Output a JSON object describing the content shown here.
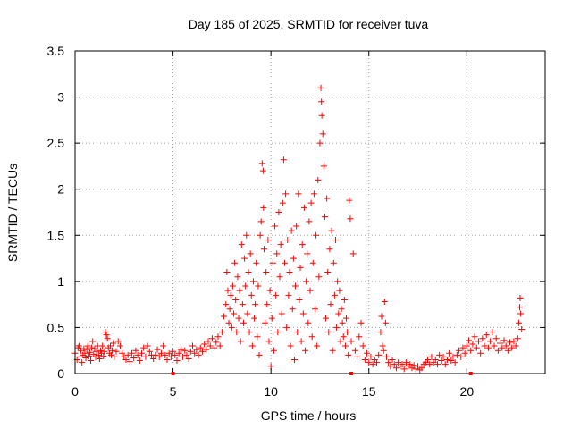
{
  "chart_data": {
    "type": "scatter",
    "title": "Day 185 of 2025, SRMTID for receiver tuva",
    "xlabel": "GPS time / hours",
    "ylabel": "SRMTID / TECUs",
    "xlim": [
      0,
      24
    ],
    "ylim": [
      0,
      3.5
    ],
    "xticks": [
      0,
      5,
      10,
      15,
      20
    ],
    "xtick_labels": [
      "0",
      "5",
      "10",
      "15",
      "20"
    ],
    "yticks": [
      0,
      0.5,
      1,
      1.5,
      2,
      2.5,
      3,
      3.5
    ],
    "ytick_labels": [
      "0",
      "0.5",
      "1",
      "1.5",
      "2",
      "2.5",
      "3",
      "3.5"
    ],
    "grid": true,
    "marker": "+",
    "color": "#ff0000",
    "gap_markers_x": [
      5.0,
      14.1,
      20.2
    ],
    "series": [
      {
        "name": "tuva",
        "points": [
          [
            0.0,
            0.22
          ],
          [
            0.1,
            0.15
          ],
          [
            0.15,
            0.28
          ],
          [
            0.2,
            0.3
          ],
          [
            0.25,
            0.18
          ],
          [
            0.3,
            0.25
          ],
          [
            0.35,
            0.12
          ],
          [
            0.4,
            0.2
          ],
          [
            0.45,
            0.27
          ],
          [
            0.5,
            0.22
          ],
          [
            0.55,
            0.17
          ],
          [
            0.6,
            0.26
          ],
          [
            0.65,
            0.3
          ],
          [
            0.7,
            0.19
          ],
          [
            0.75,
            0.23
          ],
          [
            0.8,
            0.14
          ],
          [
            0.85,
            0.28
          ],
          [
            0.9,
            0.35
          ],
          [
            0.95,
            0.21
          ],
          [
            1.0,
            0.27
          ],
          [
            1.05,
            0.18
          ],
          [
            1.1,
            0.24
          ],
          [
            1.15,
            0.3
          ],
          [
            1.2,
            0.2
          ],
          [
            1.25,
            0.16
          ],
          [
            1.3,
            0.25
          ],
          [
            1.35,
            0.22
          ],
          [
            1.4,
            0.3
          ],
          [
            1.45,
            0.19
          ],
          [
            1.5,
            0.24
          ],
          [
            1.55,
            0.45
          ],
          [
            1.6,
            0.42
          ],
          [
            1.65,
            0.38
          ],
          [
            1.7,
            0.28
          ],
          [
            1.75,
            0.22
          ],
          [
            1.8,
            0.3
          ],
          [
            1.85,
            0.2
          ],
          [
            1.9,
            0.25
          ],
          [
            1.95,
            0.33
          ],
          [
            2.0,
            0.18
          ],
          [
            2.1,
            0.24
          ],
          [
            2.2,
            0.35
          ],
          [
            2.3,
            0.3
          ],
          [
            2.4,
            0.22
          ],
          [
            2.5,
            0.18
          ],
          [
            2.6,
            0.15
          ],
          [
            2.7,
            0.2
          ],
          [
            2.8,
            0.13
          ],
          [
            2.9,
            0.22
          ],
          [
            3.0,
            0.17
          ],
          [
            3.1,
            0.25
          ],
          [
            3.2,
            0.2
          ],
          [
            3.3,
            0.14
          ],
          [
            3.4,
            0.22
          ],
          [
            3.5,
            0.28
          ],
          [
            3.6,
            0.18
          ],
          [
            3.7,
            0.3
          ],
          [
            3.8,
            0.24
          ],
          [
            3.9,
            0.2
          ],
          [
            4.0,
            0.16
          ],
          [
            4.1,
            0.2
          ],
          [
            4.2,
            0.26
          ],
          [
            4.3,
            0.18
          ],
          [
            4.4,
            0.22
          ],
          [
            4.5,
            0.3
          ],
          [
            4.6,
            0.2
          ],
          [
            4.7,
            0.15
          ],
          [
            4.8,
            0.22
          ],
          [
            4.9,
            0.18
          ],
          [
            5.0,
            0.24
          ],
          [
            5.1,
            0.2
          ],
          [
            5.2,
            0.14
          ],
          [
            5.3,
            0.22
          ],
          [
            5.4,
            0.26
          ],
          [
            5.5,
            0.18
          ],
          [
            5.6,
            0.25
          ],
          [
            5.7,
            0.2
          ],
          [
            5.8,
            0.16
          ],
          [
            5.9,
            0.24
          ],
          [
            6.0,
            0.3
          ],
          [
            6.1,
            0.22
          ],
          [
            6.2,
            0.26
          ],
          [
            6.3,
            0.2
          ],
          [
            6.4,
            0.28
          ],
          [
            6.5,
            0.24
          ],
          [
            6.6,
            0.32
          ],
          [
            6.7,
            0.26
          ],
          [
            6.8,
            0.35
          ],
          [
            6.9,
            0.3
          ],
          [
            7.0,
            0.38
          ],
          [
            7.1,
            0.28
          ],
          [
            7.2,
            0.34
          ],
          [
            7.3,
            0.4
          ],
          [
            7.4,
            0.3
          ],
          [
            7.5,
            0.45
          ],
          [
            7.6,
            0.62
          ],
          [
            7.7,
            0.75
          ],
          [
            7.75,
            1.1
          ],
          [
            7.8,
            0.9
          ],
          [
            7.85,
            0.55
          ],
          [
            7.9,
            0.7
          ],
          [
            7.95,
            0.85
          ],
          [
            8.0,
            0.5
          ],
          [
            8.05,
            0.95
          ],
          [
            8.1,
            0.65
          ],
          [
            8.15,
            1.2
          ],
          [
            8.2,
            0.8
          ],
          [
            8.25,
            0.45
          ],
          [
            8.3,
            1.05
          ],
          [
            8.35,
            0.6
          ],
          [
            8.4,
            0.9
          ],
          [
            8.45,
            0.35
          ],
          [
            8.5,
            1.4
          ],
          [
            8.55,
            0.75
          ],
          [
            8.6,
            0.55
          ],
          [
            8.65,
            1.25
          ],
          [
            8.7,
            0.95
          ],
          [
            8.75,
            1.5
          ],
          [
            8.8,
            0.65
          ],
          [
            8.85,
            1.1
          ],
          [
            8.9,
            0.45
          ],
          [
            8.95,
            1.3
          ],
          [
            9.0,
            0.85
          ],
          [
            9.05,
            0.3
          ],
          [
            9.1,
            1.0
          ],
          [
            9.15,
            0.6
          ],
          [
            9.2,
            0.75
          ],
          [
            9.25,
            1.2
          ],
          [
            9.3,
            0.4
          ],
          [
            9.35,
            0.95
          ],
          [
            9.4,
            0.2
          ],
          [
            9.45,
            1.5
          ],
          [
            9.5,
            1.65
          ],
          [
            9.55,
            2.28
          ],
          [
            9.6,
            2.2
          ],
          [
            9.62,
            1.8
          ],
          [
            9.65,
            1.35
          ],
          [
            9.7,
            0.55
          ],
          [
            9.75,
            1.1
          ],
          [
            9.8,
            0.75
          ],
          [
            9.85,
            1.45
          ],
          [
            9.9,
            0.35
          ],
          [
            9.95,
            0.9
          ],
          [
            10.0,
            0.08
          ],
          [
            10.05,
            0.6
          ],
          [
            10.1,
            1.2
          ],
          [
            10.15,
            0.25
          ],
          [
            10.2,
            1.6
          ],
          [
            10.25,
            0.85
          ],
          [
            10.3,
            1.3
          ],
          [
            10.35,
            0.45
          ],
          [
            10.4,
            1.75
          ],
          [
            10.45,
            1.05
          ],
          [
            10.5,
            1.4
          ],
          [
            10.55,
            0.65
          ],
          [
            10.6,
            1.85
          ],
          [
            10.65,
            2.32
          ],
          [
            10.7,
            1.2
          ],
          [
            10.75,
            1.95
          ],
          [
            10.8,
            0.5
          ],
          [
            10.85,
            1.45
          ],
          [
            10.9,
            0.85
          ],
          [
            10.95,
            1.1
          ],
          [
            11.0,
            0.3
          ],
          [
            11.05,
            1.55
          ],
          [
            11.1,
            0.7
          ],
          [
            11.15,
            1.25
          ],
          [
            11.2,
            0.15
          ],
          [
            11.25,
            0.95
          ],
          [
            11.3,
            1.6
          ],
          [
            11.35,
            0.45
          ],
          [
            11.4,
            1.95
          ],
          [
            11.45,
            0.8
          ],
          [
            11.5,
            1.15
          ],
          [
            11.55,
            0.35
          ],
          [
            11.6,
            1.4
          ],
          [
            11.65,
            0.65
          ],
          [
            11.7,
            1.8
          ],
          [
            11.75,
            0.25
          ],
          [
            11.8,
            1.0
          ],
          [
            11.85,
            1.3
          ],
          [
            11.9,
            0.55
          ],
          [
            11.95,
            1.65
          ],
          [
            12.0,
            0.9
          ],
          [
            12.05,
            1.85
          ],
          [
            12.1,
            0.4
          ],
          [
            12.15,
            1.2
          ],
          [
            12.2,
            1.95
          ],
          [
            12.25,
            0.7
          ],
          [
            12.3,
            1.5
          ],
          [
            12.35,
            0.3
          ],
          [
            12.4,
            2.1
          ],
          [
            12.45,
            1.05
          ],
          [
            12.5,
            2.5
          ],
          [
            12.55,
            3.1
          ],
          [
            12.58,
            2.95
          ],
          [
            12.6,
            2.8
          ],
          [
            12.65,
            2.6
          ],
          [
            12.7,
            2.25
          ],
          [
            12.75,
            1.7
          ],
          [
            12.8,
            0.6
          ],
          [
            12.85,
            1.9
          ],
          [
            12.9,
            1.1
          ],
          [
            12.95,
            0.45
          ],
          [
            13.0,
            1.35
          ],
          [
            13.05,
            0.75
          ],
          [
            13.1,
            1.55
          ],
          [
            13.15,
            0.25
          ],
          [
            13.2,
            1.2
          ],
          [
            13.25,
            0.85
          ],
          [
            13.3,
            1.45
          ],
          [
            13.35,
            0.5
          ],
          [
            13.4,
            1.0
          ],
          [
            13.45,
            0.65
          ],
          [
            13.5,
            0.9
          ],
          [
            13.55,
            0.35
          ],
          [
            13.6,
            0.7
          ],
          [
            13.65,
            0.55
          ],
          [
            13.7,
            0.4
          ],
          [
            13.75,
            0.8
          ],
          [
            13.8,
            0.3
          ],
          [
            13.85,
            0.6
          ],
          [
            13.9,
            0.45
          ],
          [
            13.95,
            0.2
          ],
          [
            14.0,
            1.88
          ],
          [
            14.05,
            1.68
          ],
          [
            14.1,
            0.35
          ],
          [
            14.2,
            1.3
          ],
          [
            14.3,
            0.25
          ],
          [
            14.4,
            0.18
          ],
          [
            14.5,
            0.4
          ],
          [
            14.6,
            0.55
          ],
          [
            14.7,
            0.3
          ],
          [
            14.8,
            0.15
          ],
          [
            14.9,
            0.22
          ],
          [
            15.0,
            0.12
          ],
          [
            15.1,
            0.18
          ],
          [
            15.2,
            0.1
          ],
          [
            15.3,
            0.15
          ],
          [
            15.4,
            0.12
          ],
          [
            15.5,
            0.2
          ],
          [
            15.6,
            0.45
          ],
          [
            15.65,
            0.62
          ],
          [
            15.7,
            0.3
          ],
          [
            15.75,
            0.25
          ],
          [
            15.8,
            0.78
          ],
          [
            15.85,
            0.55
          ],
          [
            15.9,
            0.18
          ],
          [
            16.0,
            0.12
          ],
          [
            16.1,
            0.08
          ],
          [
            16.2,
            0.15
          ],
          [
            16.3,
            0.1
          ],
          [
            16.4,
            0.06
          ],
          [
            16.5,
            0.12
          ],
          [
            16.6,
            0.08
          ],
          [
            16.7,
            0.1
          ],
          [
            16.8,
            0.05
          ],
          [
            16.9,
            0.12
          ],
          [
            17.0,
            0.08
          ],
          [
            17.1,
            0.1
          ],
          [
            17.2,
            0.06
          ],
          [
            17.3,
            0.09
          ],
          [
            17.4,
            0.05
          ],
          [
            17.5,
            0.08
          ],
          [
            17.6,
            0.04
          ],
          [
            17.7,
            0.06
          ],
          [
            17.8,
            0.1
          ],
          [
            17.9,
            0.12
          ],
          [
            18.0,
            0.15
          ],
          [
            18.1,
            0.1
          ],
          [
            18.2,
            0.18
          ],
          [
            18.3,
            0.12
          ],
          [
            18.4,
            0.15
          ],
          [
            18.5,
            0.1
          ],
          [
            18.6,
            0.2
          ],
          [
            18.7,
            0.14
          ],
          [
            18.8,
            0.18
          ],
          [
            18.9,
            0.1
          ],
          [
            19.0,
            0.15
          ],
          [
            19.1,
            0.22
          ],
          [
            19.2,
            0.14
          ],
          [
            19.3,
            0.18
          ],
          [
            19.4,
            0.12
          ],
          [
            19.5,
            0.2
          ],
          [
            19.6,
            0.25
          ],
          [
            19.7,
            0.18
          ],
          [
            19.8,
            0.28
          ],
          [
            19.9,
            0.22
          ],
          [
            20.0,
            0.3
          ],
          [
            20.1,
            0.36
          ],
          [
            20.2,
            0.25
          ],
          [
            20.3,
            0.32
          ],
          [
            20.4,
            0.4
          ],
          [
            20.5,
            0.28
          ],
          [
            20.6,
            0.35
          ],
          [
            20.7,
            0.22
          ],
          [
            20.8,
            0.38
          ],
          [
            20.9,
            0.3
          ],
          [
            21.0,
            0.42
          ],
          [
            21.1,
            0.28
          ],
          [
            21.2,
            0.35
          ],
          [
            21.3,
            0.45
          ],
          [
            21.4,
            0.3
          ],
          [
            21.5,
            0.38
          ],
          [
            21.6,
            0.25
          ],
          [
            21.7,
            0.33
          ],
          [
            21.8,
            0.28
          ],
          [
            21.9,
            0.36
          ],
          [
            22.0,
            0.3
          ],
          [
            22.1,
            0.25
          ],
          [
            22.2,
            0.34
          ],
          [
            22.3,
            0.28
          ],
          [
            22.4,
            0.35
          ],
          [
            22.5,
            0.3
          ],
          [
            22.6,
            0.38
          ],
          [
            22.65,
            0.55
          ],
          [
            22.7,
            0.72
          ],
          [
            22.72,
            0.82
          ],
          [
            22.75,
            0.65
          ],
          [
            22.8,
            0.48
          ]
        ]
      }
    ]
  }
}
